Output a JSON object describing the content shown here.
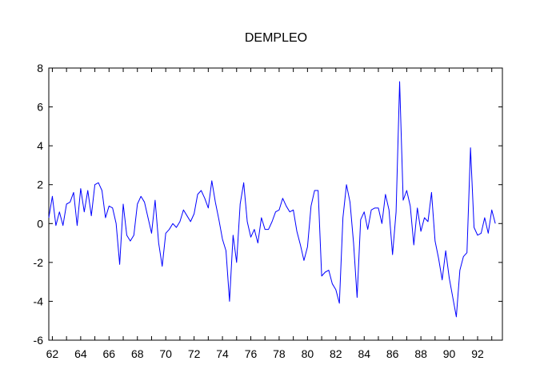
{
  "chart_data": {
    "type": "line",
    "title": "DEMPLEO",
    "xlabel": "",
    "ylabel": "",
    "xlim": [
      1961.75,
      1993.75
    ],
    "ylim": [
      -6,
      8
    ],
    "x_ticks": [
      1962,
      1964,
      1966,
      1968,
      1970,
      1972,
      1974,
      1976,
      1978,
      1980,
      1982,
      1984,
      1986,
      1988,
      1990,
      1992
    ],
    "x_tick_labels": [
      "62",
      "64",
      "66",
      "68",
      "70",
      "72",
      "74",
      "76",
      "78",
      "80",
      "82",
      "84",
      "86",
      "88",
      "90",
      "92"
    ],
    "y_ticks": [
      -6,
      -4,
      -2,
      0,
      2,
      4,
      6,
      8
    ],
    "y_tick_labels": [
      "-6",
      "-4",
      "-2",
      "0",
      "2",
      "4",
      "6",
      "8"
    ],
    "grid": false,
    "legend": "none",
    "color": "#0000ff",
    "series": [
      {
        "x_start": 1961.75,
        "x_step": 0.25,
        "values": [
          0.3,
          1.4,
          -0.1,
          0.6,
          -0.1,
          1.0,
          1.1,
          1.6,
          -0.1,
          1.8,
          0.6,
          1.7,
          0.4,
          2.0,
          2.1,
          1.7,
          0.3,
          0.9,
          0.8,
          0.0,
          -2.1,
          1.0,
          -0.6,
          -0.9,
          -0.6,
          1.0,
          1.4,
          1.1,
          0.3,
          -0.5,
          1.2,
          -1.0,
          -2.2,
          -0.5,
          -0.3,
          0.0,
          -0.2,
          0.1,
          0.7,
          0.4,
          0.1,
          0.5,
          1.5,
          1.7,
          1.3,
          0.8,
          2.2,
          1.1,
          0.2,
          -0.8,
          -1.4,
          -4.0,
          -0.6,
          -2.0,
          1.0,
          2.1,
          0.1,
          -0.7,
          -0.3,
          -1.0,
          0.3,
          -0.3,
          -0.3,
          0.1,
          0.6,
          0.7,
          1.3,
          0.9,
          0.6,
          0.7,
          -0.4,
          -1.1,
          -1.9,
          -1.2,
          0.9,
          1.7,
          1.7,
          -2.7,
          -2.5,
          -2.4,
          -3.1,
          -3.4,
          -4.1,
          0.3,
          2.0,
          1.1,
          -1.0,
          -3.8,
          0.2,
          0.6,
          -0.3,
          0.7,
          0.8,
          0.8,
          0.0,
          1.5,
          0.7,
          -1.6,
          0.6,
          7.3,
          1.2,
          1.7,
          0.9,
          -1.1,
          0.8,
          -0.4,
          0.3,
          0.1,
          1.6,
          -0.9,
          -1.8,
          -2.9,
          -1.4,
          -2.8,
          -3.8,
          -4.8,
          -2.4,
          -1.7,
          -1.5,
          3.9,
          -0.2,
          -0.6,
          -0.5,
          0.3,
          -0.5,
          0.7,
          0.0
        ]
      }
    ]
  }
}
